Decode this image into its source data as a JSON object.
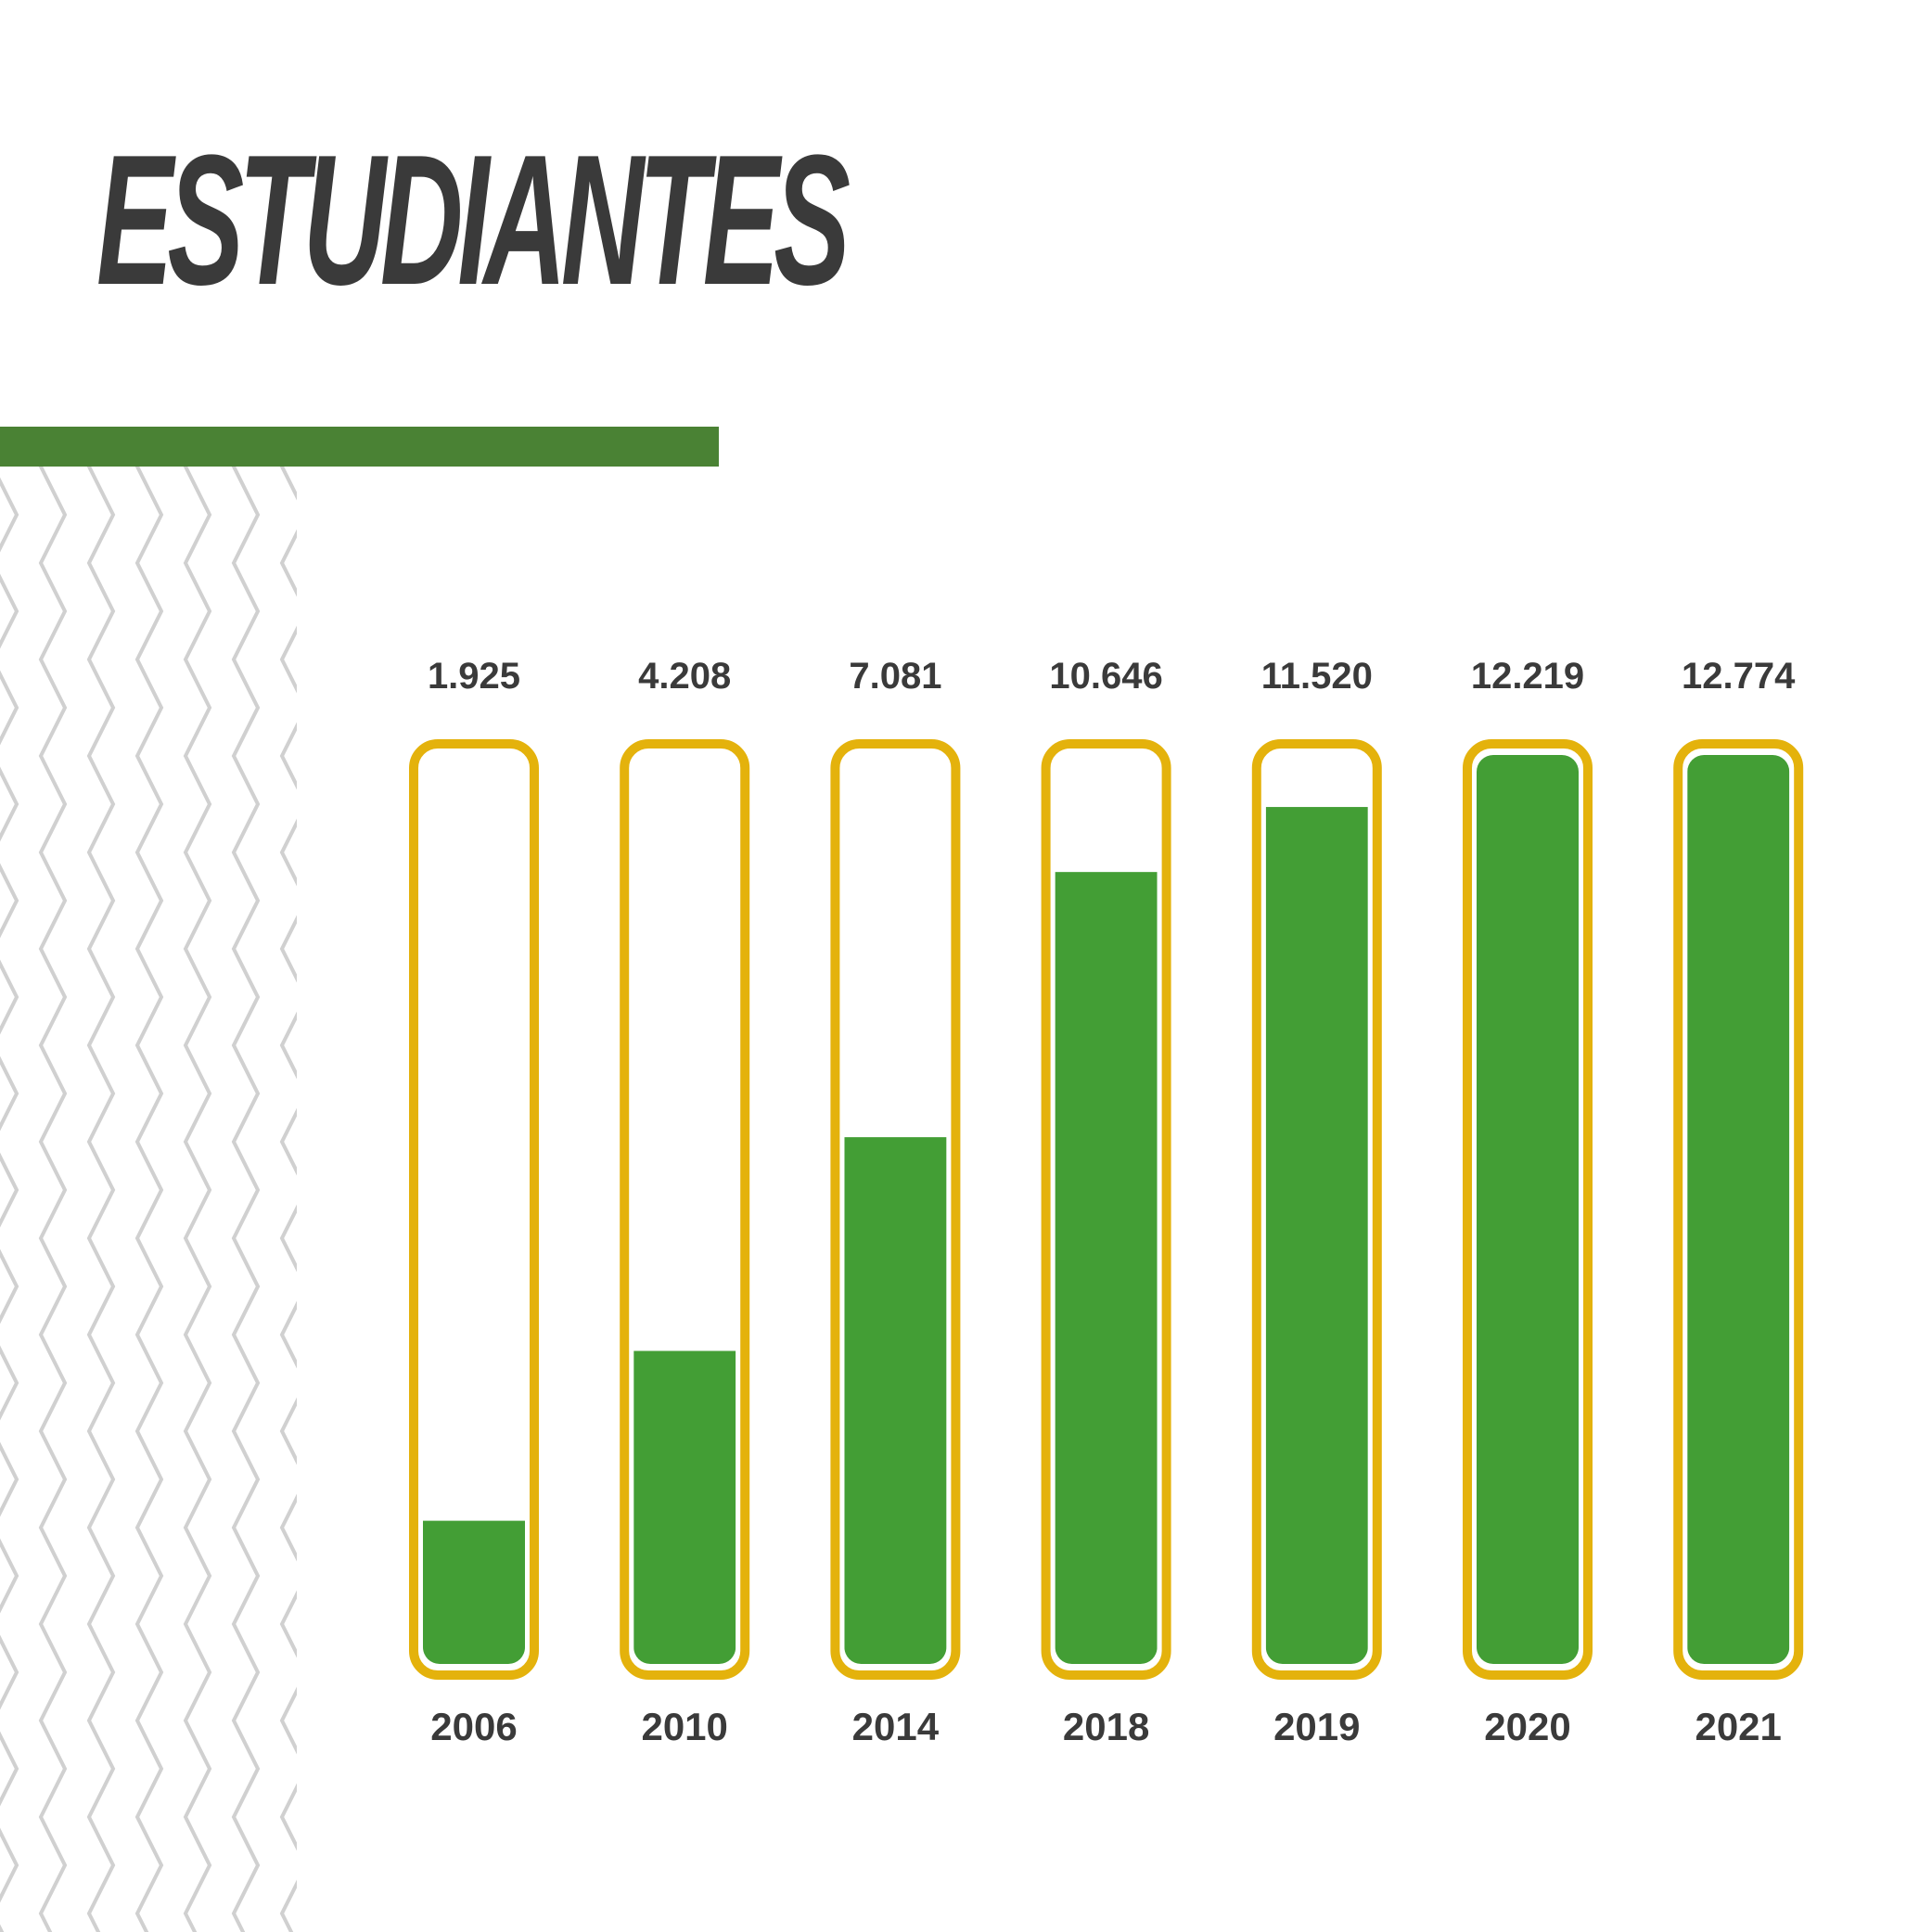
{
  "title": "ESTUDIANTES",
  "colors": {
    "title_text": "#3a3a3a",
    "accent_bar": "#4a8234",
    "bar_fill": "#439e35",
    "bar_outline": "#e4b20c",
    "bar_background": "#ffffff",
    "pattern": "#d0d0d0",
    "label_text": "#3a3a3a"
  },
  "decorations": {
    "accent_bar": "accent-bar",
    "pattern": "zigzag-pattern"
  },
  "chart_data": {
    "type": "bar",
    "title": "ESTUDIANTES",
    "categories": [
      "2006",
      "2010",
      "2014",
      "2018",
      "2019",
      "2020",
      "2021"
    ],
    "values": [
      1925,
      4208,
      7081,
      10646,
      11520,
      12219,
      12774
    ],
    "value_labels": [
      "1.925",
      "4.208",
      "7.081",
      "10.646",
      "11.520",
      "12.219",
      "12.774"
    ],
    "ylim": [
      0,
      12219
    ],
    "xlabel": "",
    "ylabel": "",
    "grid": false,
    "legend": "none"
  }
}
